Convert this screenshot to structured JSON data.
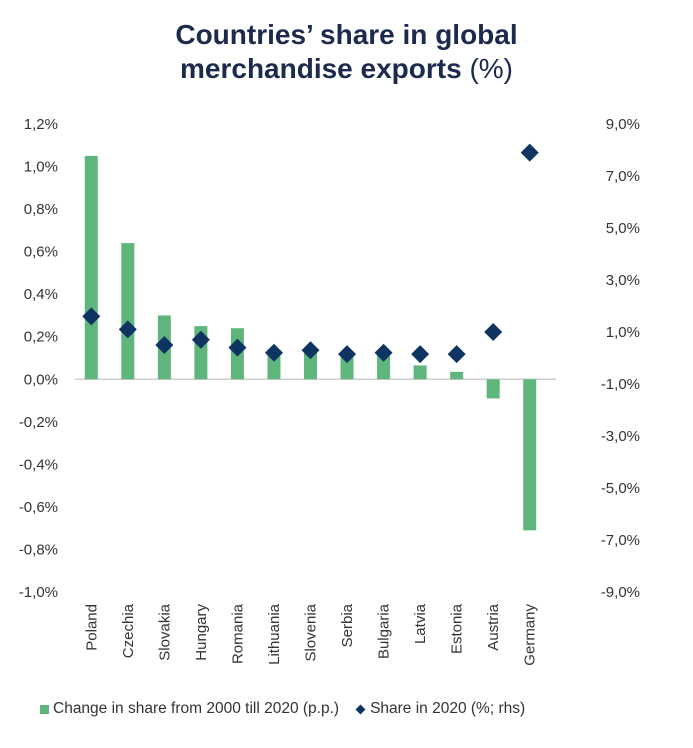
{
  "chart_data": {
    "type": "bar",
    "title": "Countries’ share in global merchandise exports (%)",
    "title_main": "Countries’ share in global",
    "title_line2_bold": "merchandise exports",
    "title_line2_light": "(%)",
    "categories": [
      "Poland",
      "Czechia",
      "Slovakia",
      "Hungary",
      "Romania",
      "Lithuania",
      "Slovenia",
      "Serbia",
      "Bulgaria",
      "Latvia",
      "Estonia",
      "Austria",
      "Germany"
    ],
    "series": [
      {
        "name": "Change in share from 2000 till 2020 (p.p.)",
        "type": "bar",
        "axis": "left",
        "color": "#5fb67c",
        "values": [
          1.05,
          0.64,
          0.3,
          0.25,
          0.24,
          0.14,
          0.14,
          0.12,
          0.13,
          0.065,
          0.035,
          -0.09,
          -0.71
        ]
      },
      {
        "name": "Share in 2020 (%; rhs)",
        "type": "scatter",
        "marker": "diamond",
        "axis": "right",
        "color": "#0f3462",
        "values": [
          1.6,
          1.1,
          0.5,
          0.7,
          0.4,
          0.2,
          0.3,
          0.15,
          0.2,
          0.15,
          0.15,
          1.0,
          7.9
        ]
      }
    ],
    "y_left": {
      "ylim": [
        -1.0,
        1.2
      ],
      "ticks": [
        1.2,
        1.0,
        0.8,
        0.6,
        0.4,
        0.2,
        0.0,
        -0.2,
        -0.4,
        -0.6,
        -0.8,
        -1.0
      ],
      "tick_labels": [
        "1,2%",
        "1,0%",
        "0,8%",
        "0,6%",
        "0,4%",
        "0,2%",
        "0,0%",
        "-0,2%",
        "-0,4%",
        "-0,6%",
        "-0,8%",
        "-1,0%"
      ]
    },
    "y_right": {
      "ylim": [
        -9.0,
        9.0
      ],
      "ticks": [
        9,
        7,
        5,
        3,
        1,
        -1,
        -3,
        -5,
        -7,
        -9
      ],
      "tick_labels": [
        "9,0%",
        "7,0%",
        "5,0%",
        "3,0%",
        "1,0%",
        "-1,0%",
        "-3,0%",
        "-5,0%",
        "-7,0%",
        "-9,0%"
      ]
    },
    "xlabel": "",
    "grid": false,
    "legend": {
      "position": "bottom",
      "entries": [
        "Change in share from 2000 till 2020 (p.p.)",
        "Share in 2020 (%; rhs)"
      ]
    }
  }
}
